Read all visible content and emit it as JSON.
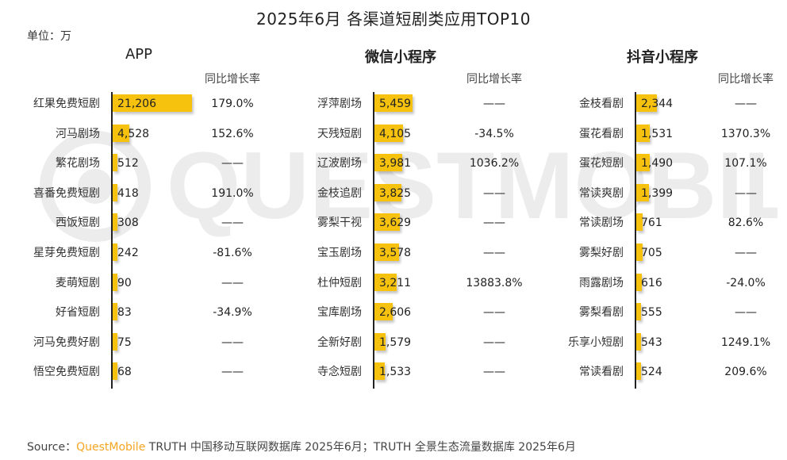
{
  "title": "2025年6月 各渠道短剧类应用TOP10",
  "unit": "单位：万",
  "growth_header": "同比增长率",
  "watermark": "QUESTMOBILE",
  "source": {
    "prefix": "Source：",
    "brand": "QuestMobile",
    "text": " TRUTH 中国移动互联网数据库 2025年6月；TRUTH 全景生态流量数据库 2025年6月"
  },
  "colors": {
    "bar": "#f6c20e",
    "brand": "#f5a623"
  },
  "chart_data": [
    {
      "type": "bar",
      "title": "APP",
      "categories": [
        "红果免费短剧",
        "河马剧场",
        "繁花剧场",
        "喜番免费短剧",
        "西饭短剧",
        "星芽免费短剧",
        "麦萌短剧",
        "好省短剧",
        "河马免费好剧",
        "悟空免费短剧"
      ],
      "values": [
        21206,
        4528,
        512,
        418,
        308,
        242,
        90,
        83,
        75,
        68
      ],
      "value_labels": [
        "21,206",
        "4,528",
        "512",
        "418",
        "308",
        "242",
        "90",
        "83",
        "75",
        "68"
      ],
      "growth": [
        "179.0%",
        "152.6%",
        "——",
        "191.0%",
        "——",
        "-81.6%",
        "——",
        "-34.9%",
        "——",
        "——"
      ]
    },
    {
      "type": "bar",
      "title": "微信小程序",
      "categories": [
        "浮萍剧场",
        "天残短剧",
        "辽波剧场",
        "金枝追剧",
        "雾梨干视",
        "宝玉剧场",
        "杜仲短剧",
        "宝库剧场",
        "全新好剧",
        "寺念短剧"
      ],
      "values": [
        5459,
        4105,
        3981,
        3825,
        3629,
        3578,
        3211,
        2606,
        1579,
        1533
      ],
      "value_labels": [
        "5,459",
        "4,105",
        "3,981",
        "3,825",
        "3,629",
        "3,578",
        "3,211",
        "2,606",
        "1,579",
        "1,533"
      ],
      "growth": [
        "——",
        "-34.5%",
        "1036.2%",
        "——",
        "——",
        "——",
        "13883.8%",
        "——",
        "——",
        "——"
      ]
    },
    {
      "type": "bar",
      "title": "抖音小程序",
      "categories": [
        "金枝看剧",
        "蛋花看剧",
        "蛋花短剧",
        "常读爽剧",
        "常读剧场",
        "雾梨好剧",
        "雨露剧场",
        "雾梨看剧",
        "乐享小短剧",
        "常读看剧"
      ],
      "values": [
        2344,
        1531,
        1490,
        1399,
        761,
        705,
        616,
        555,
        543,
        524
      ],
      "value_labels": [
        "2,344",
        "1,531",
        "1,490",
        "1,399",
        "761",
        "705",
        "616",
        "555",
        "543",
        "524"
      ],
      "growth": [
        "——",
        "1370.3%",
        "107.1%",
        "——",
        "82.6%",
        "——",
        "-24.0%",
        "——",
        "1249.1%",
        "209.6%"
      ]
    }
  ]
}
